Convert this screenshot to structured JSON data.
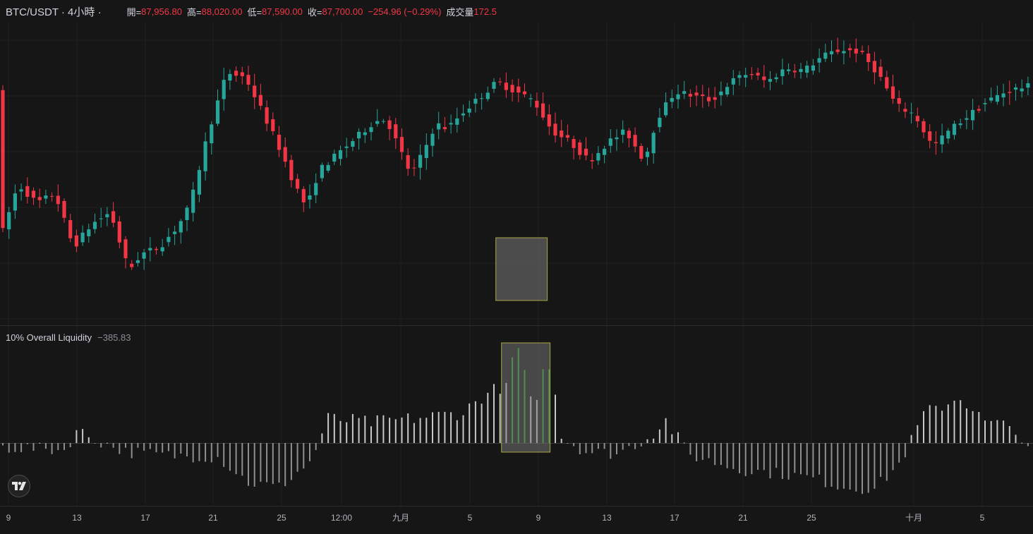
{
  "header": {
    "symbol": "BTC/USDT · 4小時 ·",
    "open_label": "開=",
    "open": "87,956.80",
    "high_label": "高=",
    "high": "88,020.00",
    "low_label": "低=",
    "low": "87,590.00",
    "close_label": "收=",
    "close": "87,700.00",
    "change": "−254.96 (−0.29%)",
    "volume_label": "成交量",
    "volume": "172.5"
  },
  "indicator": {
    "name": "10% Overall Liquidity",
    "value": "−385.83"
  },
  "colors": {
    "background": "#161616",
    "up": "#26a69a",
    "down": "#f23645",
    "liquidity_positive": "#c8c8c8",
    "liquidity_negative": "#8f8f8f",
    "liquidity_strong": "#2e9e2e",
    "highlight_fill": "#7a7a7a",
    "highlight_border": "#d8d84a"
  },
  "logo_icon": "tradingview-logo-icon",
  "chart_data": [
    {
      "type": "candlestick",
      "title": "BTC/USDT · 4小時",
      "x_tick_labels": [
        "9",
        "13",
        "17",
        "21",
        "25",
        "12:00",
        "九月",
        "5",
        "9",
        "13",
        "17",
        "21",
        "25",
        "十月",
        "5"
      ],
      "price_path_normalized": [
        [
          0,
          0.18
        ],
        [
          3,
          0.42
        ],
        [
          6,
          0.34
        ],
        [
          9,
          0.38
        ],
        [
          12,
          0.15
        ],
        [
          15,
          0.25
        ],
        [
          18,
          0.3
        ],
        [
          21,
          0.05
        ],
        [
          23,
          0.12
        ],
        [
          26,
          0.15
        ],
        [
          29,
          0.24
        ],
        [
          31,
          0.33
        ],
        [
          34,
          0.65
        ],
        [
          37,
          0.9
        ],
        [
          40,
          0.88
        ],
        [
          43,
          0.72
        ],
        [
          46,
          0.55
        ],
        [
          48,
          0.42
        ],
        [
          50,
          0.32
        ],
        [
          52,
          0.48
        ],
        [
          55,
          0.55
        ],
        [
          58,
          0.62
        ],
        [
          61,
          0.69
        ],
        [
          63,
          0.7
        ],
        [
          65,
          0.58
        ],
        [
          67,
          0.46
        ],
        [
          69,
          0.56
        ],
        [
          71,
          0.68
        ],
        [
          73,
          0.66
        ],
        [
          75,
          0.72
        ],
        [
          78,
          0.79
        ],
        [
          81,
          0.86
        ],
        [
          84,
          0.82
        ],
        [
          87,
          0.78
        ],
        [
          90,
          0.65
        ],
        [
          93,
          0.6
        ],
        [
          96,
          0.52
        ],
        [
          99,
          0.6
        ],
        [
          102,
          0.65
        ],
        [
          105,
          0.52
        ],
        [
          107,
          0.7
        ],
        [
          110,
          0.82
        ],
        [
          113,
          0.8
        ],
        [
          116,
          0.78
        ],
        [
          119,
          0.86
        ],
        [
          122,
          0.9
        ],
        [
          125,
          0.86
        ],
        [
          128,
          0.92
        ],
        [
          131,
          0.91
        ],
        [
          134,
          0.97
        ],
        [
          137,
          1.0
        ],
        [
          140,
          0.99
        ],
        [
          143,
          0.9
        ],
        [
          146,
          0.76
        ],
        [
          149,
          0.72
        ],
        [
          152,
          0.58
        ],
        [
          155,
          0.66
        ],
        [
          158,
          0.72
        ],
        [
          161,
          0.78
        ],
        [
          164,
          0.82
        ],
        [
          167,
          0.84
        ]
      ],
      "highlight_region": {
        "candles": [
          81,
          88
        ]
      }
    },
    {
      "type": "bar",
      "title": "10% Overall Liquidity",
      "last_value": -385.83,
      "liquidity_path": [
        [
          0,
          -0.05
        ],
        [
          10,
          -0.08
        ],
        [
          12,
          0.12
        ],
        [
          20,
          -0.1
        ],
        [
          27,
          -0.14
        ],
        [
          35,
          -0.16
        ],
        [
          40,
          -0.45
        ],
        [
          45,
          -0.5
        ],
        [
          50,
          -0.22
        ],
        [
          53,
          0.24
        ],
        [
          60,
          0.2
        ],
        [
          67,
          0.24
        ],
        [
          75,
          0.3
        ],
        [
          78,
          0.45
        ],
        [
          81,
          0.55
        ],
        [
          86,
          0.42
        ],
        [
          90,
          0.5
        ],
        [
          91,
          0.06
        ],
        [
          95,
          -0.1
        ],
        [
          100,
          -0.12
        ],
        [
          105,
          0.05
        ],
        [
          108,
          0.22
        ],
        [
          112,
          -0.14
        ],
        [
          120,
          -0.3
        ],
        [
          127,
          -0.35
        ],
        [
          132,
          -0.4
        ],
        [
          137,
          -0.5
        ],
        [
          142,
          -0.52
        ],
        [
          146,
          -0.24
        ],
        [
          150,
          0.28
        ],
        [
          156,
          0.45
        ],
        [
          160,
          0.2
        ],
        [
          165,
          0.15
        ],
        [
          167,
          -0.1
        ]
      ],
      "strong_bars": [
        83,
        84,
        85,
        88,
        89
      ]
    }
  ]
}
